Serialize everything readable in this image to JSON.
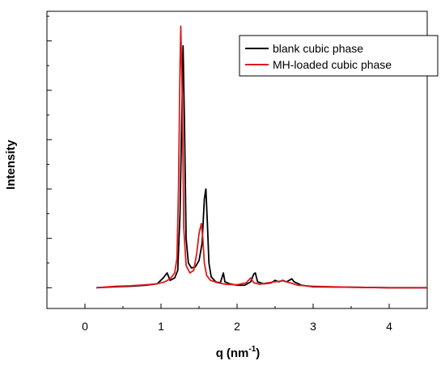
{
  "chart_data": {
    "type": "line",
    "title": "",
    "xlabel": "q (nm⁻¹)",
    "xlabel_main": "q",
    "xlabel_unit_base": "(nm",
    "xlabel_unit_exp": "-1",
    "xlabel_unit_close": ")",
    "ylabel": "Intensity",
    "xlim": [
      -0.5,
      4.5
    ],
    "ylim": [
      -0.42,
      5.6
    ],
    "y_ticks_labeled": false,
    "y_ticks": [
      0,
      0.5,
      1.0,
      1.5,
      2.0,
      2.5,
      3.0,
      3.5,
      4.0,
      4.5,
      5.0,
      5.5
    ],
    "x_ticks": [
      0,
      1,
      2,
      3,
      4
    ],
    "x_tick_labels": [
      "0",
      "1",
      "2",
      "3",
      "4"
    ],
    "grid": false,
    "legend_position": "top-right",
    "series": [
      {
        "name": "blank cubic phase",
        "color": "#000000",
        "points": [
          [
            0.15,
            0.0
          ],
          [
            0.4,
            0.02
          ],
          [
            0.6,
            0.03
          ],
          [
            0.8,
            0.05
          ],
          [
            0.95,
            0.08
          ],
          [
            1.03,
            0.2
          ],
          [
            1.08,
            0.3
          ],
          [
            1.12,
            0.15
          ],
          [
            1.18,
            0.2
          ],
          [
            1.22,
            0.35
          ],
          [
            1.25,
            1.5
          ],
          [
            1.27,
            3.2
          ],
          [
            1.29,
            4.9
          ],
          [
            1.31,
            3.2
          ],
          [
            1.33,
            1.0
          ],
          [
            1.36,
            0.5
          ],
          [
            1.4,
            0.4
          ],
          [
            1.45,
            0.42
          ],
          [
            1.5,
            0.55
          ],
          [
            1.54,
            0.9
          ],
          [
            1.57,
            1.8
          ],
          [
            1.59,
            2.0
          ],
          [
            1.61,
            1.3
          ],
          [
            1.63,
            0.5
          ],
          [
            1.66,
            0.22
          ],
          [
            1.72,
            0.12
          ],
          [
            1.78,
            0.1
          ],
          [
            1.82,
            0.3
          ],
          [
            1.84,
            0.12
          ],
          [
            1.9,
            0.08
          ],
          [
            2.0,
            0.05
          ],
          [
            2.1,
            0.05
          ],
          [
            2.18,
            0.12
          ],
          [
            2.22,
            0.28
          ],
          [
            2.24,
            0.3
          ],
          [
            2.27,
            0.12
          ],
          [
            2.35,
            0.08
          ],
          [
            2.45,
            0.1
          ],
          [
            2.5,
            0.15
          ],
          [
            2.55,
            0.12
          ],
          [
            2.6,
            0.15
          ],
          [
            2.65,
            0.12
          ],
          [
            2.72,
            0.18
          ],
          [
            2.75,
            0.12
          ],
          [
            2.85,
            0.05
          ],
          [
            3.0,
            0.02
          ],
          [
            3.5,
            0.01
          ],
          [
            4.0,
            0.0
          ],
          [
            4.5,
            0.0
          ]
        ]
      },
      {
        "name": "MH-loaded cubic phase",
        "color": "#e0191b",
        "points": [
          [
            0.15,
            0.0
          ],
          [
            0.4,
            0.03
          ],
          [
            0.6,
            0.04
          ],
          [
            0.8,
            0.06
          ],
          [
            0.95,
            0.08
          ],
          [
            1.05,
            0.12
          ],
          [
            1.12,
            0.18
          ],
          [
            1.18,
            0.3
          ],
          [
            1.21,
            0.6
          ],
          [
            1.23,
            2.0
          ],
          [
            1.25,
            4.5
          ],
          [
            1.26,
            5.3
          ],
          [
            1.28,
            3.8
          ],
          [
            1.3,
            1.2
          ],
          [
            1.33,
            0.45
          ],
          [
            1.38,
            0.3
          ],
          [
            1.43,
            0.35
          ],
          [
            1.47,
            0.7
          ],
          [
            1.5,
            1.1
          ],
          [
            1.53,
            1.3
          ],
          [
            1.55,
            1.0
          ],
          [
            1.57,
            0.5
          ],
          [
            1.6,
            0.25
          ],
          [
            1.65,
            0.15
          ],
          [
            1.75,
            0.1
          ],
          [
            1.85,
            0.07
          ],
          [
            2.0,
            0.06
          ],
          [
            2.12,
            0.1
          ],
          [
            2.18,
            0.2
          ],
          [
            2.22,
            0.1
          ],
          [
            2.3,
            0.07
          ],
          [
            2.4,
            0.1
          ],
          [
            2.5,
            0.12
          ],
          [
            2.6,
            0.14
          ],
          [
            2.7,
            0.1
          ],
          [
            2.8,
            0.05
          ],
          [
            3.0,
            0.03
          ],
          [
            3.5,
            0.01
          ],
          [
            4.0,
            0.0
          ],
          [
            4.5,
            0.0
          ]
        ]
      }
    ]
  }
}
